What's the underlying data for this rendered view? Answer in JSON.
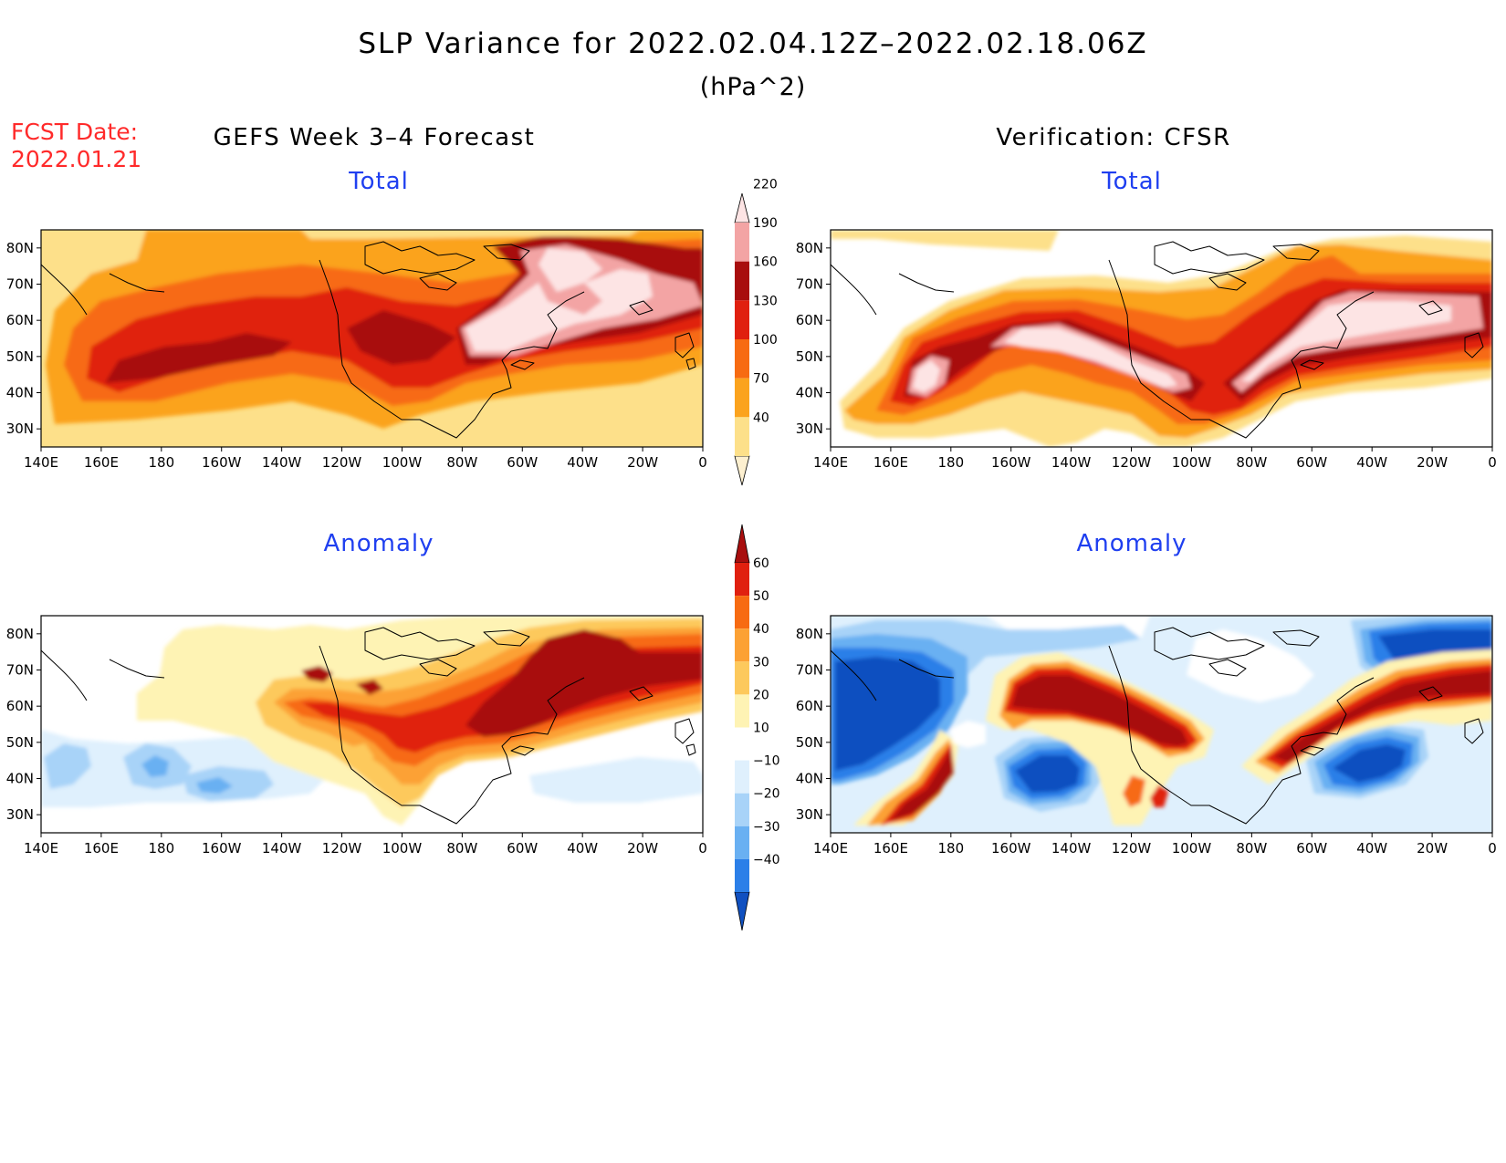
{
  "header": {
    "title": "SLP Variance for 2022.02.04.12Z–2022.02.18.06Z",
    "units": "(hPa^2)",
    "fcst_label": "FCST Date:",
    "fcst_date": "2022.01.21"
  },
  "columns": {
    "left_title": "GEFS Week 3–4 Forecast",
    "right_title": "Verification: CFSR"
  },
  "panels": {
    "total_label": "Total",
    "anomaly_label": "Anomaly"
  },
  "axes": {
    "lon_ticks": [
      "140E",
      "160E",
      "180",
      "160W",
      "140W",
      "120W",
      "100W",
      "80W",
      "60W",
      "40W",
      "20W",
      "0"
    ],
    "lat_ticks_total": [
      "30N",
      "40N",
      "50N",
      "60N",
      "70N",
      "80N"
    ],
    "lat_ticks_anom": [
      "30N",
      "40N",
      "50N",
      "60N",
      "70N",
      "80N"
    ]
  },
  "colorbars": {
    "total": {
      "labels": [
        "40",
        "70",
        "100",
        "130",
        "160",
        "190",
        "220"
      ],
      "colors": [
        "#fdf0d0",
        "#fde08a",
        "#fba31e",
        "#f76b12",
        "#e0200f",
        "#a80e0e",
        "#f3a4a4",
        "#fde4e4"
      ]
    },
    "anomaly": {
      "labels": [
        "−40",
        "−30",
        "−20",
        "−10",
        "10",
        "20",
        "30",
        "40",
        "50",
        "60"
      ],
      "colors": [
        "#1050c0",
        "#2b7fe8",
        "#69b0f2",
        "#a8d3f8",
        "#dff0fd",
        "#ffffff",
        "#fef3b4",
        "#fdc95c",
        "#fca134",
        "#f76b12",
        "#e0200f",
        "#a80e0e"
      ]
    }
  },
  "colors": {
    "fcst_date": "#ff2a2a",
    "panel_title": "#1f3ff0"
  }
}
